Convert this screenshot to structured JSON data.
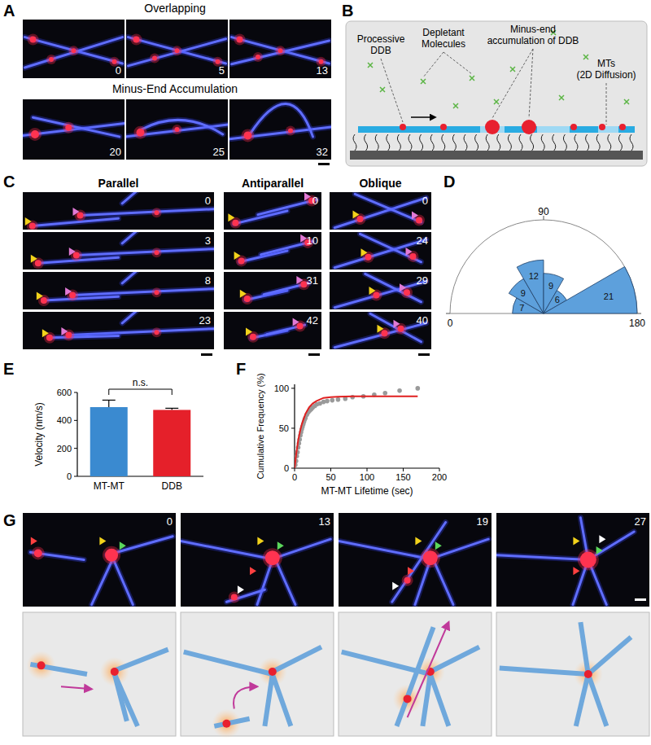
{
  "panel_labels": [
    "A",
    "B",
    "C",
    "D",
    "E",
    "F",
    "G"
  ],
  "panel_a": {
    "rows": [
      {
        "title": "Overlapping",
        "times": [
          0,
          5,
          13
        ]
      },
      {
        "title": "Minus-End Accumulation",
        "times": [
          20,
          25,
          32
        ]
      }
    ]
  },
  "panel_b": {
    "processive": [
      "Processive",
      "DDB"
    ],
    "depletant": [
      "Depletant",
      "Molecules"
    ],
    "minus_end": [
      "Minus-end",
      "accumulation of DDB"
    ],
    "mts": [
      "MTs",
      "(2D Diffusion)"
    ]
  },
  "panel_c": {
    "columns": [
      {
        "title": "Parallel",
        "times": [
          0,
          3,
          8,
          23
        ]
      },
      {
        "title": "Antiparallel",
        "times": [
          0,
          10,
          31,
          42
        ]
      },
      {
        "title": "Oblique",
        "times": [
          0,
          24,
          29,
          40
        ]
      }
    ]
  },
  "panel_g": {
    "times": [
      0,
      13,
      19,
      27
    ]
  },
  "chart_data": [
    {
      "type": "rose",
      "bins": [
        0,
        30,
        60,
        90,
        120,
        150,
        180
      ],
      "values": [
        7,
        9,
        12,
        9,
        6,
        21
      ],
      "xlim": [
        0,
        180
      ],
      "xticks": [
        0,
        90,
        180
      ],
      "ylim": [
        0,
        21
      ],
      "data_labels": true,
      "color": "#5da0dc"
    },
    {
      "type": "bar",
      "categories": [
        "MT-MT",
        "DDB"
      ],
      "values": [
        495,
        475
      ],
      "errors": [
        50,
        12
      ],
      "colors": [
        "#3a8ad0",
        "#e5202a"
      ],
      "ylim": [
        0,
        600
      ],
      "yticks": [
        0,
        200,
        400,
        600
      ],
      "y_label": "Velocity (nm/s)",
      "annotation": "n.s."
    },
    {
      "type": "scatter",
      "x_label": "MT-MT Lifetime (sec)",
      "y_label": "Cumulative Frequency (%)",
      "xlim": [
        0,
        200
      ],
      "xticks": [
        0,
        50,
        100,
        150,
        200
      ],
      "ylim": [
        0,
        105
      ],
      "yticks": [
        0,
        50,
        100
      ],
      "series": [
        {
          "type": "scatter",
          "color": "#9a9a9a",
          "marker": "circle",
          "x": [
            1,
            2,
            3,
            4,
            5,
            6,
            7,
            8,
            9,
            10,
            11,
            12,
            13,
            14,
            15,
            17,
            19,
            21,
            23,
            25,
            28,
            31,
            35,
            40,
            45,
            52,
            60,
            70,
            80,
            95,
            110,
            125,
            145,
            170
          ],
          "values": [
            4,
            9,
            15,
            20,
            26,
            31,
            36,
            41,
            45,
            49,
            52,
            55,
            58,
            61,
            63,
            67,
            70,
            72,
            74,
            76,
            78,
            80,
            81,
            83,
            84,
            85,
            86,
            87,
            89,
            90,
            92,
            94,
            97,
            100
          ]
        },
        {
          "type": "line",
          "color": "#e02020",
          "line_style": "solid",
          "x": [
            0,
            2,
            5,
            8,
            10,
            15,
            20,
            25,
            30,
            40,
            50,
            60,
            80,
            100,
            130,
            170
          ],
          "values": [
            0,
            16,
            35,
            48,
            55,
            68,
            76,
            81,
            84,
            88,
            89,
            89.5,
            90,
            90,
            90,
            90
          ]
        }
      ]
    }
  ]
}
